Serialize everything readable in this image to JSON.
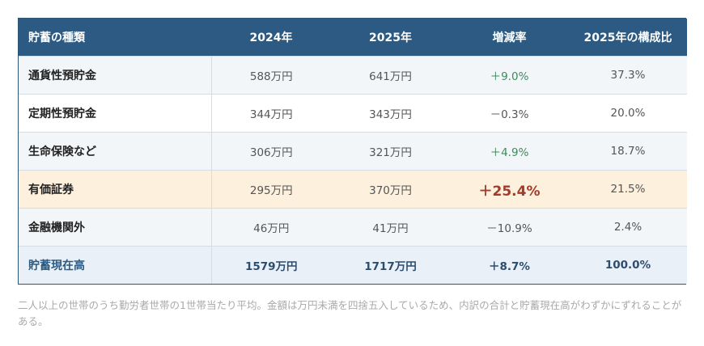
{
  "table": {
    "headers": [
      "貯蓄の種類",
      "2024年",
      "2025年",
      "増減率",
      "2025年の構成比"
    ],
    "rows": [
      {
        "label": "通貨性預貯金",
        "y2024": "588万円",
        "y2025": "641万円",
        "change": "＋9.0%",
        "share": "37.3%"
      },
      {
        "label": "定期性預貯金",
        "y2024": "344万円",
        "y2025": "343万円",
        "change": "－0.3%",
        "share": "20.0%"
      },
      {
        "label": "生命保険など",
        "y2024": "306万円",
        "y2025": "321万円",
        "change": "＋4.9%",
        "share": "18.7%"
      },
      {
        "label": "有価証券",
        "y2024": "295万円",
        "y2025": "370万円",
        "change": "＋25.4%",
        "share": "21.5%"
      },
      {
        "label": "金融機関外",
        "y2024": "46万円",
        "y2025": "41万円",
        "change": "－10.9%",
        "share": "2.4%"
      },
      {
        "label": "貯蓄現在高",
        "y2024": "1579万円",
        "y2025": "1717万円",
        "change": "＋8.7%",
        "share": "100.0%"
      }
    ]
  },
  "note": "二人以上の世帯のうち勤労者世帯の1世帯当たり平均。金額は万円未満を四捨五入しているため、内訳の合計と貯蓄現在高がわずかにずれることがある。",
  "colors": {
    "header_bg": "#2c5a82",
    "highlight_bg": "#fdf0dc",
    "highlight_text": "#a23b2a",
    "positive_text": "#3d8a5b"
  }
}
